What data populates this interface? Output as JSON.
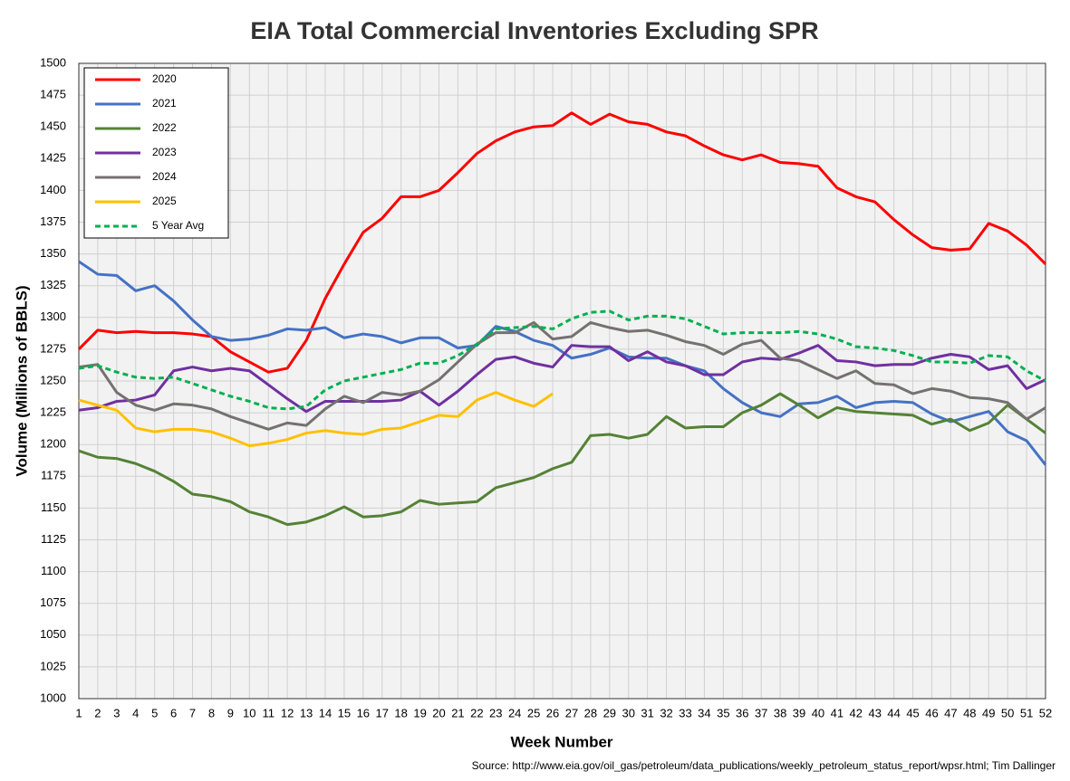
{
  "chart_data": {
    "type": "line",
    "title": "EIA Total Commercial Inventories Excluding SPR",
    "xlabel": "Week Number",
    "ylabel": "Volume (Millions of BBLS)",
    "source": "Source: http://www.eia.gov/oil_gas/petroleum/data_publications/weekly_petroleum_status_report/wpsr.html; Tim Dallinger",
    "x": [
      1,
      2,
      3,
      4,
      5,
      6,
      7,
      8,
      9,
      10,
      11,
      12,
      13,
      14,
      15,
      16,
      17,
      18,
      19,
      20,
      21,
      22,
      23,
      24,
      25,
      26,
      27,
      28,
      29,
      30,
      31,
      32,
      33,
      34,
      35,
      36,
      37,
      38,
      39,
      40,
      41,
      42,
      43,
      44,
      45,
      46,
      47,
      48,
      49,
      50,
      51,
      52
    ],
    "xlim": [
      1,
      52
    ],
    "xticks": [
      1,
      2,
      3,
      4,
      5,
      6,
      7,
      8,
      9,
      10,
      11,
      12,
      13,
      14,
      15,
      16,
      17,
      18,
      19,
      20,
      21,
      22,
      23,
      24,
      25,
      26,
      27,
      28,
      29,
      30,
      31,
      32,
      33,
      34,
      35,
      36,
      37,
      38,
      39,
      40,
      41,
      42,
      43,
      44,
      45,
      46,
      47,
      48,
      49,
      50,
      51,
      52
    ],
    "ylim": [
      1000,
      1500
    ],
    "yticks": [
      1000,
      1025,
      1050,
      1075,
      1100,
      1125,
      1150,
      1175,
      1200,
      1225,
      1250,
      1275,
      1300,
      1325,
      1350,
      1375,
      1400,
      1425,
      1450,
      1475,
      1500
    ],
    "grid": true,
    "legend": "upper left",
    "series": [
      {
        "name": "2020",
        "color": "#ff0000",
        "values": [
          1275,
          1290,
          1288,
          1289,
          1288,
          1288,
          1287,
          1285,
          1273,
          1265,
          1257,
          1260,
          1282,
          1315,
          1342,
          1367,
          1378,
          1395,
          1395,
          1400,
          1414,
          1429,
          1439,
          1446,
          1450,
          1451,
          1461,
          1452,
          1460,
          1454,
          1452,
          1446,
          1443,
          1435,
          1428,
          1424,
          1428,
          1422,
          1421,
          1419,
          1402,
          1395,
          1391,
          1377,
          1365,
          1355,
          1353,
          1354,
          1374,
          1368,
          1357,
          1342
        ]
      },
      {
        "name": "2021",
        "color": "#4472c4",
        "values": [
          1344,
          1334,
          1333,
          1321,
          1325,
          1313,
          1298,
          1285,
          1282,
          1283,
          1286,
          1291,
          1290,
          1292,
          1284,
          1287,
          1285,
          1280,
          1284,
          1284,
          1276,
          1278,
          1293,
          1289,
          1282,
          1278,
          1268,
          1271,
          1276,
          1269,
          1268,
          1268,
          1262,
          1258,
          1244,
          1233,
          1225,
          1222,
          1232,
          1233,
          1238,
          1229,
          1233,
          1234,
          1233,
          1224,
          1218,
          1222,
          1226,
          1210,
          1203,
          1184
        ]
      },
      {
        "name": "2022",
        "color": "#548235",
        "values": [
          1195,
          1190,
          1189,
          1185,
          1179,
          1171,
          1161,
          1159,
          1155,
          1147,
          1143,
          1137,
          1139,
          1144,
          1151,
          1143,
          1144,
          1147,
          1156,
          1153,
          1154,
          1155,
          1166,
          1170,
          1174,
          1181,
          1186,
          1207,
          1208,
          1205,
          1208,
          1222,
          1213,
          1214,
          1214,
          1225,
          1231,
          1240,
          1231,
          1221,
          1229,
          1226,
          1225,
          1224,
          1223,
          1216,
          1220,
          1211,
          1217,
          1231,
          1220,
          1209
        ]
      },
      {
        "name": "2023",
        "color": "#7030a0",
        "values": [
          1227,
          1229,
          1234,
          1235,
          1239,
          1258,
          1261,
          1258,
          1260,
          1258,
          1247,
          1236,
          1226,
          1234,
          1234,
          1234,
          1234,
          1235,
          1242,
          1231,
          1242,
          1255,
          1267,
          1269,
          1264,
          1261,
          1278,
          1277,
          1277,
          1266,
          1273,
          1265,
          1262,
          1255,
          1255,
          1265,
          1268,
          1267,
          1272,
          1278,
          1266,
          1265,
          1262,
          1263,
          1263,
          1268,
          1271,
          1269,
          1259,
          1262,
          1244,
          1251
        ]
      },
      {
        "name": "2024",
        "color": "#767171",
        "values": [
          1261,
          1263,
          1241,
          1231,
          1227,
          1232,
          1231,
          1228,
          1222,
          1217,
          1212,
          1217,
          1215,
          1228,
          1238,
          1233,
          1241,
          1239,
          1242,
          1251,
          1265,
          1279,
          1288,
          1288,
          1296,
          1283,
          1285,
          1296,
          1292,
          1289,
          1290,
          1286,
          1281,
          1278,
          1271,
          1279,
          1282,
          1268,
          1266,
          1259,
          1252,
          1258,
          1248,
          1247,
          1240,
          1244,
          1242,
          1237,
          1236,
          1233,
          1220,
          1229
        ]
      },
      {
        "name": "2025",
        "color": "#ffc000",
        "values": [
          1235,
          1231,
          1227,
          1213,
          1210,
          1212,
          1212,
          1210,
          1205,
          1199,
          1201,
          1204,
          1209,
          1211,
          1209,
          1208,
          1212,
          1213,
          1218,
          1223,
          1222,
          1235,
          1241,
          1235,
          1230,
          1240,
          null,
          null,
          null,
          null,
          null,
          null,
          null,
          null,
          null,
          null,
          null,
          null,
          null,
          null,
          null,
          null,
          null,
          null,
          null,
          null,
          null,
          null,
          null,
          null,
          null,
          null
        ]
      },
      {
        "name": "5 Year Avg",
        "color": "#00b050",
        "dashed": true,
        "values": [
          1260,
          1262,
          1257,
          1253,
          1252,
          1253,
          1248,
          1243,
          1238,
          1234,
          1229,
          1228,
          1230,
          1243,
          1250,
          1253,
          1256,
          1259,
          1264,
          1264,
          1270,
          1279,
          1291,
          1292,
          1293,
          1291,
          1299,
          1304,
          1305,
          1298,
          1301,
          1301,
          1299,
          1293,
          1287,
          1288,
          1288,
          1288,
          1289,
          1287,
          1283,
          1277,
          1276,
          1274,
          1270,
          1265,
          1265,
          1264,
          1270,
          1269,
          1258,
          1250
        ]
      }
    ]
  }
}
